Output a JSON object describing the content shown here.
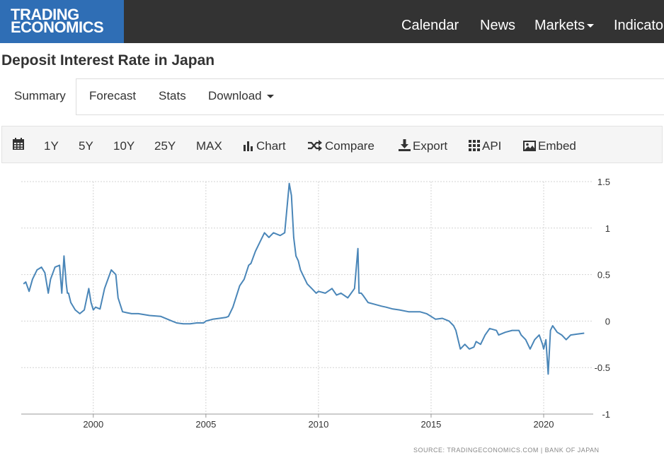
{
  "logo": {
    "line1": "TRADING",
    "line2": "ECONOMICS"
  },
  "nav": {
    "calendar": "Calendar",
    "news": "News",
    "markets": "Markets",
    "indicators": "Indicato"
  },
  "page": {
    "title": "Deposit Interest Rate in Japan"
  },
  "tabs": {
    "summary": "Summary",
    "forecast": "Forecast",
    "stats": "Stats",
    "download": "Download"
  },
  "toolbar": {
    "y1": "1Y",
    "y5": "5Y",
    "y10": "10Y",
    "y25": "25Y",
    "max": "MAX",
    "chart": "Chart",
    "compare": "Compare",
    "export": "Export",
    "api": "API",
    "embed": "Embed"
  },
  "colors": {
    "topbar": "#333333",
    "logo": "#2f6eb5",
    "line": "#4a86b8"
  },
  "source": "SOURCE: TRADINGECONOMICS.COM | BANK OF JAPAN",
  "chart_data": {
    "type": "line",
    "title": "",
    "xlabel": "",
    "ylabel": "",
    "xlim": [
      1996.8,
      2022.2
    ],
    "ylim": [
      -1,
      1.5
    ],
    "x_ticks": [
      2000,
      2005,
      2010,
      2015,
      2020
    ],
    "x_tick_labels": [
      "2000",
      "2005",
      "2010",
      "2015",
      "2020"
    ],
    "y_ticks": [
      1.5,
      1,
      0.5,
      0,
      -0.5,
      -1
    ],
    "y_tick_labels": [
      "1.5",
      "1",
      "0.5",
      "0",
      "-0.5",
      "-1"
    ],
    "grid": true,
    "series": [
      {
        "x": [
          1996.9,
          1997.0,
          1997.15,
          1997.3,
          1997.5,
          1997.7,
          1997.85,
          1998.0,
          1998.1,
          1998.3,
          1998.5,
          1998.6,
          1998.7,
          1998.8,
          1998.85,
          1998.9,
          1999.0,
          1999.2,
          1999.4,
          1999.6,
          1999.8,
          1999.9,
          2000.0,
          2000.1,
          2000.3,
          2000.5,
          2000.8,
          2001.0,
          2001.1,
          2001.3,
          2001.5,
          2001.7,
          2002.0,
          2002.5,
          2003.0,
          2003.3,
          2003.5,
          2003.7,
          2004.0,
          2004.3,
          2004.6,
          2004.9,
          2005.0,
          2005.3,
          2005.6,
          2005.9,
          2006.0,
          2006.2,
          2006.5,
          2006.7,
          2006.9,
          2007.0,
          2007.2,
          2007.4,
          2007.6,
          2007.8,
          2008.0,
          2008.3,
          2008.5,
          2008.7,
          2008.8,
          2008.9,
          2009.0,
          2009.1,
          2009.2,
          2009.3,
          2009.4,
          2009.5,
          2009.7,
          2009.9,
          2010.0,
          2010.3,
          2010.6,
          2010.8,
          2011.0,
          2011.3,
          2011.6,
          2011.75,
          2011.8,
          2011.9,
          2012.0,
          2012.2,
          2012.5,
          2012.8,
          2013.0,
          2013.3,
          2013.6,
          2014.0,
          2014.5,
          2014.8,
          2015.0,
          2015.2,
          2015.5,
          2015.8,
          2016.0,
          2016.1,
          2016.3,
          2016.5,
          2016.7,
          2016.9,
          2017.0,
          2017.2,
          2017.4,
          2017.6,
          2017.9,
          2018.0,
          2018.3,
          2018.6,
          2018.9,
          2019.0,
          2019.2,
          2019.4,
          2019.6,
          2019.8,
          2019.95,
          2020.0,
          2020.1,
          2020.2,
          2020.3,
          2020.4,
          2020.6,
          2020.8,
          2021.0,
          2021.2,
          2021.5,
          2021.8
        ],
        "y": [
          0.4,
          0.42,
          0.32,
          0.45,
          0.55,
          0.58,
          0.52,
          0.3,
          0.45,
          0.58,
          0.6,
          0.3,
          0.7,
          0.4,
          0.3,
          0.3,
          0.2,
          0.12,
          0.08,
          0.12,
          0.35,
          0.2,
          0.12,
          0.15,
          0.13,
          0.35,
          0.55,
          0.5,
          0.25,
          0.1,
          0.09,
          0.08,
          0.08,
          0.06,
          0.05,
          0.02,
          0.0,
          -0.02,
          -0.03,
          -0.03,
          -0.02,
          -0.02,
          0.0,
          0.02,
          0.03,
          0.04,
          0.05,
          0.15,
          0.38,
          0.45,
          0.6,
          0.62,
          0.75,
          0.85,
          0.95,
          0.9,
          0.95,
          0.92,
          0.95,
          1.48,
          1.35,
          0.9,
          0.7,
          0.65,
          0.55,
          0.5,
          0.45,
          0.4,
          0.35,
          0.3,
          0.32,
          0.3,
          0.35,
          0.28,
          0.3,
          0.25,
          0.35,
          0.78,
          0.3,
          0.3,
          0.27,
          0.2,
          0.18,
          0.16,
          0.15,
          0.13,
          0.12,
          0.1,
          0.1,
          0.08,
          0.05,
          0.02,
          0.03,
          0.0,
          -0.05,
          -0.1,
          -0.3,
          -0.25,
          -0.3,
          -0.28,
          -0.22,
          -0.25,
          -0.15,
          -0.08,
          -0.1,
          -0.15,
          -0.12,
          -0.1,
          -0.1,
          -0.15,
          -0.2,
          -0.3,
          -0.2,
          -0.15,
          -0.25,
          -0.3,
          -0.2,
          -0.57,
          -0.1,
          -0.05,
          -0.12,
          -0.15,
          -0.2,
          -0.15,
          -0.14,
          -0.13
        ]
      }
    ]
  }
}
